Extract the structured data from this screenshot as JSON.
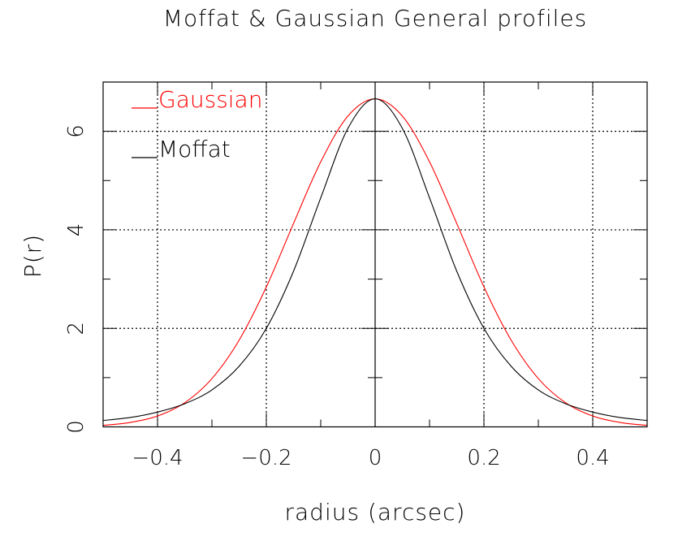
{
  "chart_data": {
    "type": "line",
    "title": "Moffat & Gaussian General profiles",
    "xlabel": "radius (arcsec)",
    "ylabel": "P(r)",
    "xlim": [
      -0.5,
      0.5
    ],
    "ylim": [
      0,
      7
    ],
    "xticks": [
      -0.4,
      -0.2,
      0,
      0.2,
      0.4
    ],
    "xtick_labels": [
      "−0.4",
      "−0.2",
      "0",
      "0.2",
      "0.4"
    ],
    "yticks": [
      0,
      2,
      4,
      6
    ],
    "ytick_labels": [
      "0",
      "2",
      "4",
      "6"
    ],
    "grid": true,
    "legend_placement": "top-left",
    "x": [
      -0.5,
      -0.45,
      -0.4,
      -0.35,
      -0.3,
      -0.25,
      -0.2,
      -0.15,
      -0.1,
      -0.05,
      0,
      0.05,
      0.1,
      0.15,
      0.2,
      0.25,
      0.3,
      0.35,
      0.4,
      0.45,
      0.5
    ],
    "series": [
      {
        "name": "Gaussian",
        "color": "#ff0000",
        "values": [
          0.03,
          0.09,
          0.22,
          0.49,
          0.98,
          1.76,
          2.84,
          4.13,
          5.38,
          6.31,
          6.66,
          6.31,
          5.38,
          4.13,
          2.84,
          1.76,
          0.98,
          0.49,
          0.22,
          0.09,
          0.03
        ]
      },
      {
        "name": "Moffat",
        "color": "#000000",
        "values": [
          0.13,
          0.19,
          0.3,
          0.47,
          0.75,
          1.23,
          2.0,
          3.16,
          4.65,
          6.06,
          6.66,
          6.06,
          4.65,
          3.16,
          2.0,
          1.23,
          0.75,
          0.47,
          0.3,
          0.19,
          0.13
        ]
      }
    ]
  }
}
